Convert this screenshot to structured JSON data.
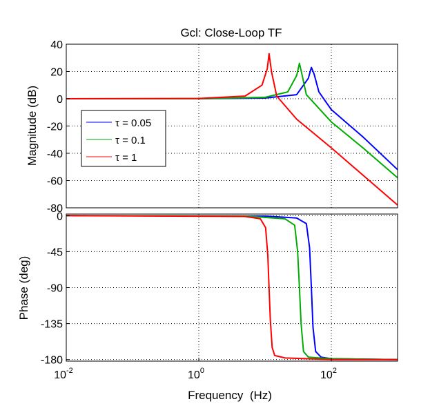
{
  "chart_data": [
    {
      "type": "line",
      "title": "Gcl: Close-Loop TF",
      "ylabel": "Magnitude (dB)",
      "xscale": "log",
      "xlim": [
        0.01,
        1000
      ],
      "ylim": [
        -80,
        40
      ],
      "yticks": [
        "40",
        "20",
        "0",
        "-20",
        "-40",
        "-60",
        "-80"
      ],
      "grid": true,
      "legend_position": "left",
      "series": [
        {
          "name": "τ = 0.05",
          "color": "#0000ff",
          "x": [
            0.01,
            1,
            10,
            30,
            45,
            50,
            55,
            65,
            100,
            300,
            1000
          ],
          "y": [
            0,
            0,
            0.5,
            3,
            15,
            23,
            18,
            5,
            -8,
            -28,
            -52
          ]
        },
        {
          "name": "τ = 0.1",
          "color": "#00aa00",
          "x": [
            0.01,
            1,
            10,
            22,
            30,
            33,
            36,
            42,
            100,
            300,
            1000
          ],
          "y": [
            0,
            0,
            1,
            5,
            17,
            26,
            18,
            3,
            -17,
            -36,
            -58
          ]
        },
        {
          "name": "τ = 1",
          "color": "#ff0000",
          "x": [
            0.01,
            1,
            5,
            9,
            10.8,
            11.5,
            12.5,
            15,
            30,
            100,
            1000
          ],
          "y": [
            0,
            0.2,
            2,
            10,
            22,
            33,
            20,
            2,
            -15,
            -36,
            -78
          ]
        }
      ]
    },
    {
      "type": "line",
      "xlabel": "Frequency  (Hz)",
      "ylabel": "Phase (deg)",
      "xscale": "log",
      "xlim": [
        0.01,
        1000
      ],
      "ylim": [
        -182,
        2
      ],
      "yticks": [
        "0",
        "-45",
        "-90",
        "-135",
        "-180"
      ],
      "xticks": [
        {
          "base": "10",
          "exp": "-2"
        },
        {
          "base": "10",
          "exp": "0"
        },
        {
          "base": "10",
          "exp": "2"
        }
      ],
      "grid": true,
      "series": [
        {
          "name": "τ = 0.05",
          "color": "#0000ff",
          "x": [
            0.01,
            10,
            30,
            42,
            47,
            50,
            53,
            58,
            70,
            100,
            1000
          ],
          "y": [
            0,
            -0.5,
            -3,
            -10,
            -40,
            -90,
            -140,
            -170,
            -177,
            -179,
            -180
          ]
        },
        {
          "name": "τ = 0.1",
          "color": "#00aa00",
          "x": [
            0.01,
            5,
            20,
            28,
            31,
            33,
            35,
            38,
            45,
            100,
            1000
          ],
          "y": [
            0,
            -0.5,
            -4,
            -12,
            -45,
            -90,
            -135,
            -170,
            -177,
            -179,
            -180
          ]
        },
        {
          "name": "τ = 1",
          "color": "#ff0000",
          "x": [
            0.01,
            5,
            8.5,
            10.2,
            11,
            11.5,
            12,
            12.8,
            14,
            20,
            100,
            1000
          ],
          "y": [
            0,
            -1,
            -4,
            -15,
            -50,
            -90,
            -130,
            -165,
            -175,
            -178,
            -180,
            -180
          ]
        }
      ]
    }
  ]
}
